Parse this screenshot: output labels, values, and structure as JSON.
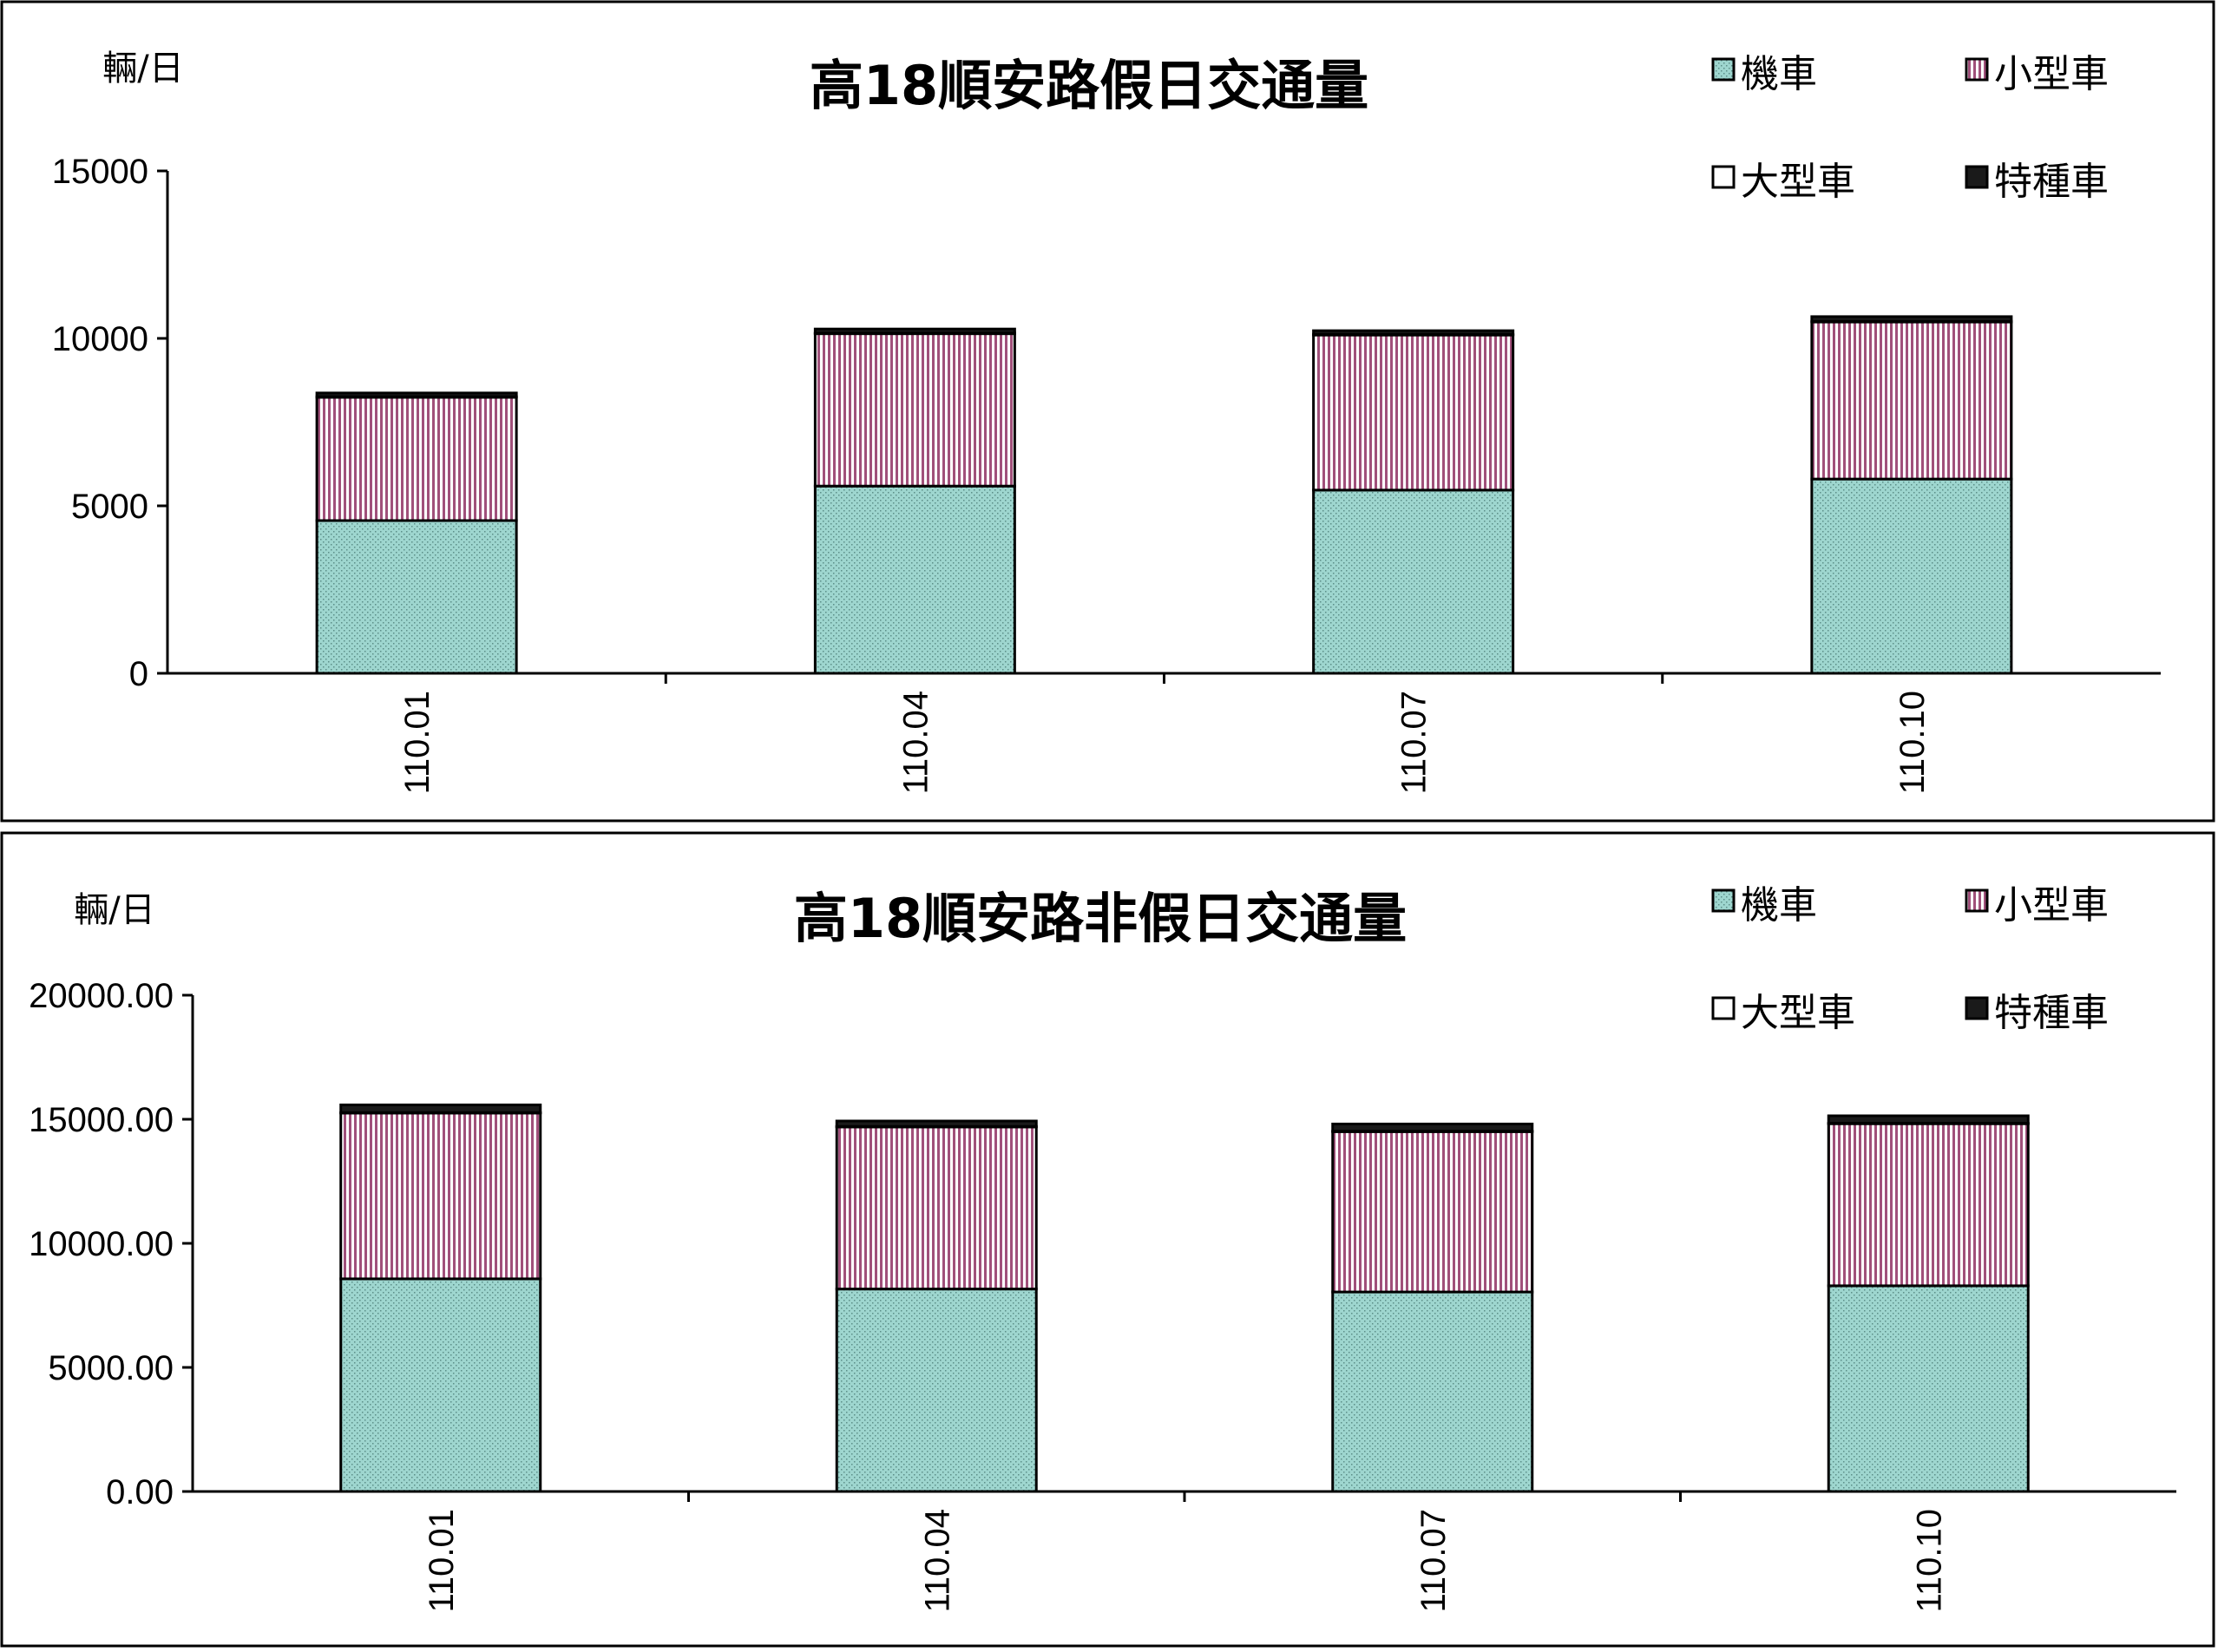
{
  "colors": {
    "motorcycle": "#9ed6cf",
    "small_car": "#a0507a",
    "large_car": "#ffffff",
    "special_car": "#1a1a1a"
  },
  "chart_data": [
    {
      "type": "bar",
      "stacked": true,
      "title": "高18順安路假日交通量",
      "unit_label": "輛/日",
      "categories": [
        "110.01",
        "110.04",
        "110.07",
        "110.10"
      ],
      "y_ticks": [
        "0",
        "5000",
        "10000",
        "15000"
      ],
      "ylim": [
        0,
        15000
      ],
      "legend": [
        "機車",
        "小型車",
        "大型車",
        "特種車"
      ],
      "legend_position": "top-right",
      "series": [
        {
          "name": "機車",
          "values": [
            4560,
            5590,
            5470,
            5800
          ]
        },
        {
          "name": "小型車",
          "values": [
            3680,
            4550,
            4630,
            4690
          ]
        },
        {
          "name": "大型車",
          "values": [
            20,
            20,
            20,
            20
          ]
        },
        {
          "name": "特種車",
          "values": [
            110,
            120,
            110,
            140
          ]
        }
      ]
    },
    {
      "type": "bar",
      "stacked": true,
      "title": "高18順安路非假日交通量",
      "unit_label": "輛/日",
      "categories": [
        "110.01",
        "110.04",
        "110.07",
        "110.10"
      ],
      "y_ticks": [
        "0.00",
        "5000.00",
        "10000.00",
        "15000.00",
        "20000.00"
      ],
      "ylim": [
        0,
        20000
      ],
      "legend": [
        "機車",
        "小型車",
        "大型車",
        "特種車"
      ],
      "legend_position": "top-right",
      "series": [
        {
          "name": "機車",
          "values": [
            8570,
            8160,
            8040,
            8290
          ]
        },
        {
          "name": "小型車",
          "values": [
            6680,
            6530,
            6460,
            6530
          ]
        },
        {
          "name": "大型車",
          "values": [
            20,
            20,
            20,
            20
          ]
        },
        {
          "name": "特種車",
          "values": [
            310,
            220,
            290,
            300
          ]
        }
      ]
    }
  ]
}
